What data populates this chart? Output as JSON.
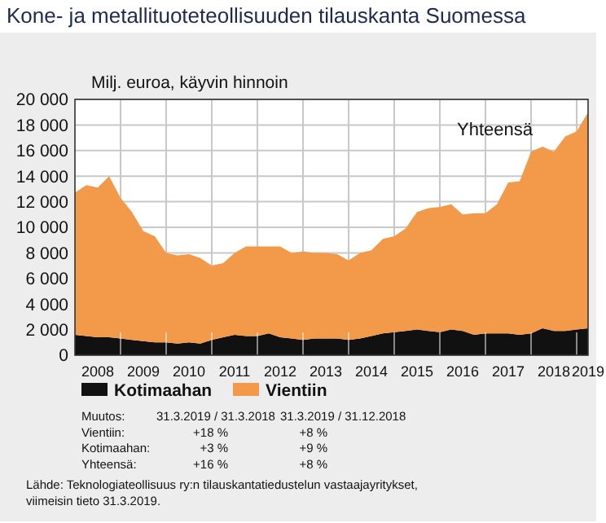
{
  "chart_data": {
    "type": "area",
    "stacked": true,
    "title": "Kone- ja metallituoteteollisuuden tilauskanta Suomessa",
    "ylabel": "Milj. euroa, käyvin hinnoin",
    "x": [
      2008,
      2008.25,
      2008.5,
      2008.75,
      2009,
      2009.25,
      2009.5,
      2009.75,
      2010,
      2010.25,
      2010.5,
      2010.75,
      2011,
      2011.25,
      2011.5,
      2011.75,
      2012,
      2012.25,
      2012.5,
      2012.75,
      2013,
      2013.25,
      2013.5,
      2013.75,
      2014,
      2014.25,
      2014.5,
      2014.75,
      2015,
      2015.25,
      2015.5,
      2015.75,
      2016,
      2016.25,
      2016.5,
      2016.75,
      2017,
      2017.25,
      2017.5,
      2017.75,
      2018,
      2018.25,
      2018.5,
      2018.75,
      2019,
      2019.25
    ],
    "series": [
      {
        "name": "Kotimaahan",
        "color": "#111111",
        "values": [
          1600,
          1500,
          1400,
          1400,
          1300,
          1200,
          1100,
          1000,
          1000,
          900,
          1000,
          900,
          1200,
          1400,
          1600,
          1500,
          1500,
          1700,
          1400,
          1300,
          1200,
          1300,
          1300,
          1300,
          1200,
          1300,
          1500,
          1700,
          1800,
          1900,
          2000,
          1900,
          1800,
          2000,
          1900,
          1600,
          1700,
          1700,
          1700,
          1600,
          1700,
          2100,
          1900,
          1900,
          2000,
          2100
        ]
      },
      {
        "name": "Vientiin",
        "color": "#f29a4a",
        "values": [
          11100,
          11800,
          11700,
          12600,
          11000,
          10000,
          8600,
          8300,
          7000,
          6900,
          6900,
          6700,
          5800,
          5800,
          6400,
          7000,
          7000,
          6800,
          7100,
          6700,
          6900,
          6700,
          6700,
          6600,
          6200,
          6700,
          6700,
          7400,
          7500,
          8000,
          9200,
          9600,
          9800,
          9800,
          9100,
          9500,
          9400,
          10100,
          11800,
          12000,
          14200,
          14200,
          14000,
          15200,
          15500,
          16900
        ]
      }
    ],
    "xlim": [
      2008,
      2019.25
    ],
    "xticks": [
      {
        "value": 2008.5,
        "label": "2008"
      },
      {
        "value": 2009,
        "label": null
      },
      {
        "value": 2009.5,
        "label": "2009"
      },
      {
        "value": 2010,
        "label": null
      },
      {
        "value": 2010.5,
        "label": "2010"
      },
      {
        "value": 2011,
        "label": null
      },
      {
        "value": 2011.5,
        "label": "2011"
      },
      {
        "value": 2012,
        "label": null
      },
      {
        "value": 2012.5,
        "label": "2012"
      },
      {
        "value": 2013,
        "label": null
      },
      {
        "value": 2013.5,
        "label": "2013"
      },
      {
        "value": 2014,
        "label": null
      },
      {
        "value": 2014.5,
        "label": "2014"
      },
      {
        "value": 2015,
        "label": null
      },
      {
        "value": 2015.5,
        "label": "2015"
      },
      {
        "value": 2016,
        "label": null
      },
      {
        "value": 2016.5,
        "label": "2016"
      },
      {
        "value": 2017,
        "label": null
      },
      {
        "value": 2017.5,
        "label": "2017"
      },
      {
        "value": 2018,
        "label": null
      },
      {
        "value": 2018.5,
        "label": "2018"
      },
      {
        "value": 2019,
        "label": null
      },
      {
        "value": 2019.25,
        "label": "2019"
      }
    ],
    "ylim": [
      0,
      20000
    ],
    "yticks": [
      0,
      {
        "value": 2000,
        "label": "2 000"
      },
      {
        "value": 4000,
        "label": "4 000"
      },
      {
        "value": 6000,
        "label": "6 000"
      },
      {
        "value": 8000,
        "label": "8 000"
      },
      {
        "value": 10000,
        "label": "10 000"
      },
      {
        "value": 12000,
        "label": "12 000"
      },
      {
        "value": 14000,
        "label": "14 000"
      },
      {
        "value": 16000,
        "label": "16 000"
      },
      {
        "value": 18000,
        "label": "18 000"
      },
      {
        "value": 20000,
        "label": "20 000"
      }
    ],
    "grid": true,
    "legend": "bottom",
    "annotations": [
      "Yhteensä",
      "Muutos:\t31.3.2019 / 31.3.2018\t31.3.2019 / 31.12.2018",
      "Vientiin:\t+18 %\t+8 %",
      "Kotimaahan:\t+3 %\t+9 %",
      "Yhteensä:\t+16 %\t+8 %",
      "Lähde: Teknologiateollisuus ry:n tilauskantatiedustelun vastaajayritykset,\nviimeisin tieto 31.3.2019."
    ]
  }
}
